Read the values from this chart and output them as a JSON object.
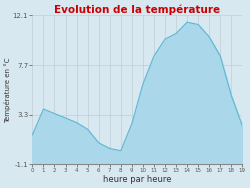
{
  "title": "Evolution de la température",
  "xlabel": "heure par heure",
  "ylabel": "Température en °C",
  "background_color": "#d8e8f0",
  "plot_bg_color": "#d8e8f0",
  "fill_color": "#aad8ea",
  "line_color": "#60b8d4",
  "title_color": "#cc0000",
  "grid_color": "#c0cdd4",
  "ylim": [
    -1.1,
    12.1
  ],
  "xlim": [
    0,
    19
  ],
  "yticks": [
    -1.1,
    3.3,
    7.7,
    12.1
  ],
  "xticks": [
    0,
    1,
    2,
    3,
    4,
    5,
    6,
    7,
    8,
    9,
    10,
    11,
    12,
    13,
    14,
    15,
    16,
    17,
    18,
    19
  ],
  "hours": [
    0,
    1,
    2,
    3,
    4,
    5,
    6,
    7,
    8,
    9,
    10,
    11,
    12,
    13,
    14,
    15,
    16,
    17,
    18,
    19
  ],
  "temps": [
    1.5,
    3.8,
    3.4,
    3.0,
    2.6,
    2.0,
    0.8,
    0.3,
    0.1,
    2.5,
    6.0,
    8.5,
    10.0,
    10.5,
    11.5,
    11.3,
    10.2,
    8.5,
    5.0,
    2.3
  ]
}
